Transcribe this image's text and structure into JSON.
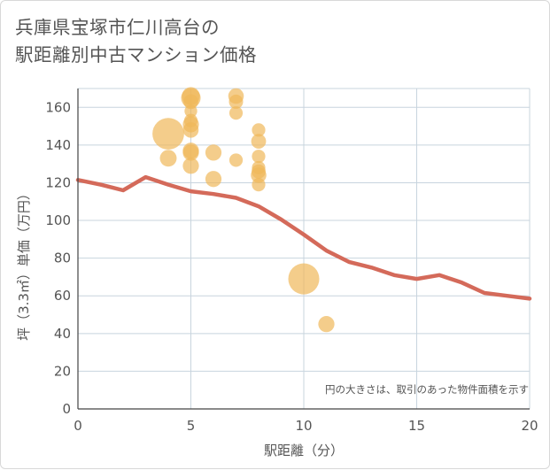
{
  "title_lines": [
    "兵庫県宝塚市仁川高台の",
    "駅距離別中古マンション価格"
  ],
  "chart_data": {
    "type": "scatter",
    "xlabel": "駅距離（分）",
    "ylabel": "坪（3.3㎡）単価（万円）",
    "xlim": [
      0,
      20
    ],
    "ylim": [
      0,
      170
    ],
    "x_ticks": [
      "0",
      "5",
      "10",
      "15",
      "20"
    ],
    "y_ticks": [
      "0",
      "20",
      "40",
      "60",
      "80",
      "100",
      "120",
      "140",
      "160"
    ],
    "grid": true,
    "note": "円の大きさは、取引のあった物件面積を示す",
    "colors": {
      "bubble": "#f0b85a",
      "line": "#d46a5a",
      "grid": "#c8d4de"
    },
    "bubbles": [
      {
        "x": 4,
        "y": 146,
        "size": 5
      },
      {
        "x": 4,
        "y": 133,
        "size": 1.4
      },
      {
        "x": 5,
        "y": 166,
        "size": 1.6
      },
      {
        "x": 5,
        "y": 165,
        "size": 1.9
      },
      {
        "x": 5,
        "y": 163,
        "size": 1.1
      },
      {
        "x": 5,
        "y": 158,
        "size": 0.8
      },
      {
        "x": 5,
        "y": 153,
        "size": 0.9
      },
      {
        "x": 5,
        "y": 151,
        "size": 1.3
      },
      {
        "x": 5,
        "y": 148,
        "size": 1.2
      },
      {
        "x": 5,
        "y": 137,
        "size": 1.3
      },
      {
        "x": 5,
        "y": 136,
        "size": 1.3
      },
      {
        "x": 5,
        "y": 129,
        "size": 1.3
      },
      {
        "x": 6,
        "y": 136,
        "size": 1.3
      },
      {
        "x": 6,
        "y": 122,
        "size": 1.3
      },
      {
        "x": 7,
        "y": 166,
        "size": 1.2
      },
      {
        "x": 7,
        "y": 163,
        "size": 1.0
      },
      {
        "x": 7,
        "y": 157,
        "size": 0.9
      },
      {
        "x": 7,
        "y": 132,
        "size": 0.9
      },
      {
        "x": 8,
        "y": 148,
        "size": 0.9
      },
      {
        "x": 8,
        "y": 142,
        "size": 1.1
      },
      {
        "x": 8,
        "y": 134,
        "size": 0.9
      },
      {
        "x": 8,
        "y": 128,
        "size": 0.9
      },
      {
        "x": 8,
        "y": 126,
        "size": 1.0
      },
      {
        "x": 8,
        "y": 124,
        "size": 1.2
      },
      {
        "x": 8,
        "y": 119,
        "size": 0.9
      },
      {
        "x": 10,
        "y": 69,
        "size": 4.8
      },
      {
        "x": 11,
        "y": 45,
        "size": 1.3
      }
    ],
    "series": [
      {
        "x": [
          0,
          1,
          2,
          3,
          4,
          5,
          6,
          7,
          8,
          9,
          10,
          11,
          12,
          13,
          14,
          15,
          16,
          17,
          18,
          19,
          20
        ],
        "values": [
          121.5,
          119,
          116,
          123,
          119,
          115.5,
          114,
          112,
          107.5,
          100.5,
          92.5,
          84,
          78,
          75,
          71,
          69,
          71,
          67,
          61.5,
          60,
          58.5
        ]
      }
    ]
  }
}
